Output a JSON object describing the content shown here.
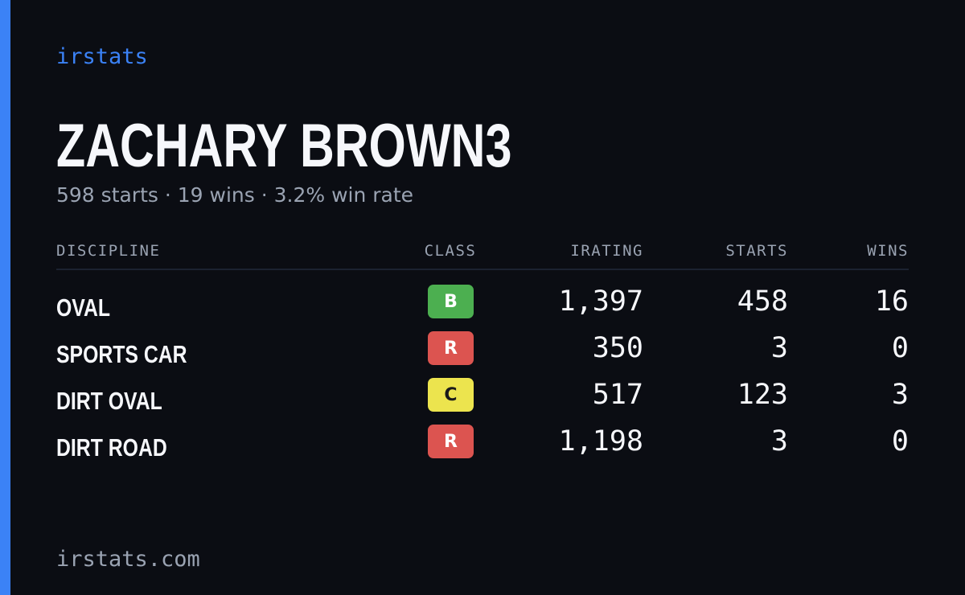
{
  "brand": "irstats",
  "player": {
    "name": "ZACHARY BROWN3",
    "summary": "598 starts · 19 wins · 3.2% win rate"
  },
  "table": {
    "headers": [
      "DISCIPLINE",
      "CLASS",
      "IRATING",
      "STARTS",
      "WINS"
    ],
    "rows": [
      {
        "discipline": "OVAL",
        "class": "B",
        "irating": "1,397",
        "starts": "458",
        "wins": "16"
      },
      {
        "discipline": "SPORTS CAR",
        "class": "R",
        "irating": "350",
        "starts": "3",
        "wins": "0"
      },
      {
        "discipline": "DIRT OVAL",
        "class": "C",
        "irating": "517",
        "starts": "123",
        "wins": "3"
      },
      {
        "discipline": "DIRT ROAD",
        "class": "R",
        "irating": "1,198",
        "starts": "3",
        "wins": "0"
      }
    ]
  },
  "class_colors": {
    "B": {
      "bg": "#4caf50",
      "fg": "#ffffff"
    },
    "R": {
      "bg": "#dc5450",
      "fg": "#ffffff"
    },
    "C": {
      "bg": "#ece44e",
      "fg": "#1a1a1a"
    }
  },
  "colors": {
    "accent": "#3b82f6",
    "background": "#0b0d13",
    "muted_text": "#9aa3b2"
  },
  "footer": "irstats.com"
}
